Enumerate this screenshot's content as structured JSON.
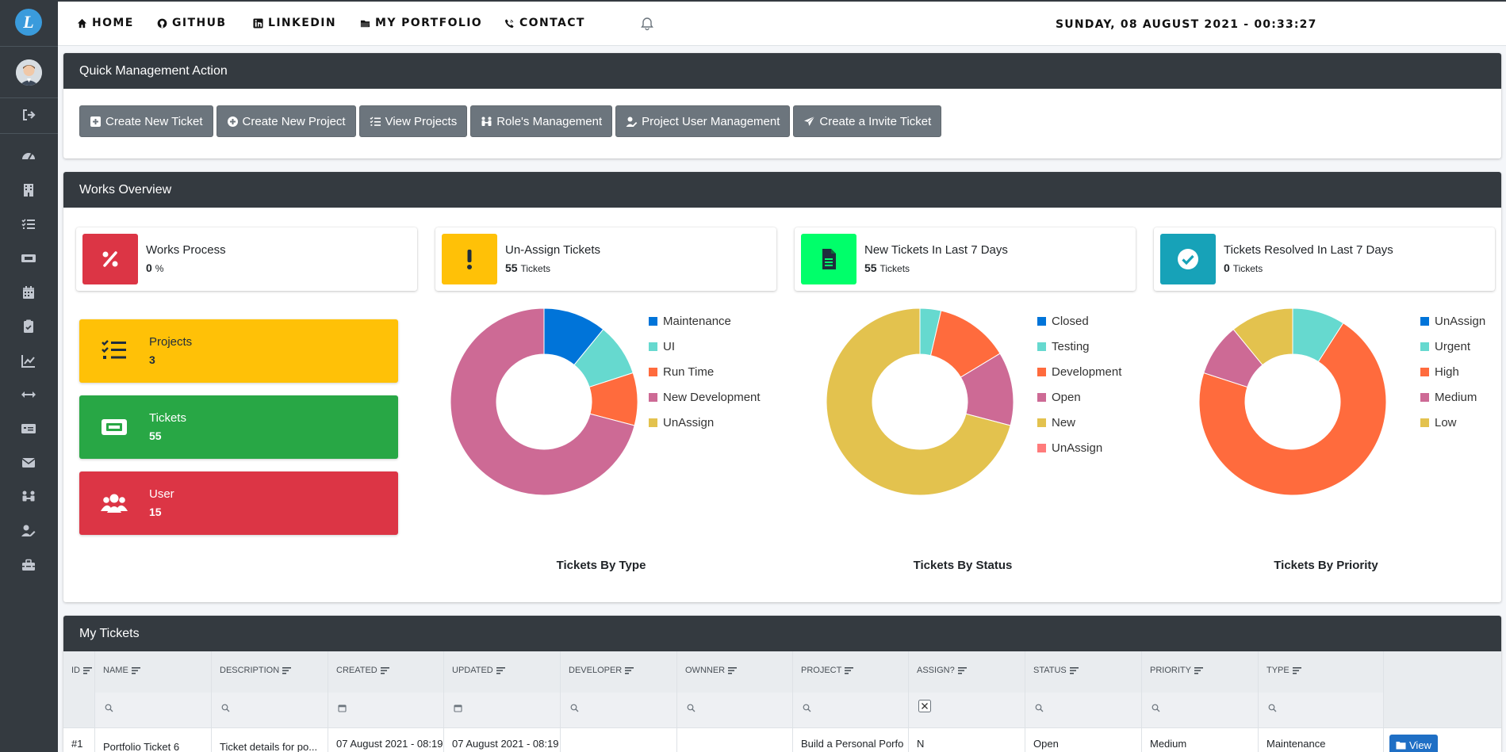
{
  "nav": {
    "home": "HOME",
    "github": "GITHUB",
    "linkedin": "LINKEDIN",
    "portfolio": "MY PORTFOLIO",
    "contact": "CONTACT",
    "datetime": "SUNDAY, 08 AUGUST 2021 - 00:33:27"
  },
  "sidebar": {
    "logo": "L",
    "icons": [
      "logout-icon",
      "dashboard-icon",
      "building-icon",
      "tasks-icon",
      "ticket-icon",
      "calendar-icon",
      "clipboard-icon",
      "chart-icon",
      "arrows-icon",
      "money-icon",
      "mail-icon",
      "users-icon",
      "user-edit-icon",
      "toolbox-icon"
    ]
  },
  "quick": {
    "title": "Quick Management Action",
    "buttons": [
      "Create New Ticket",
      "Create New Project",
      "View Projects",
      "Role's Management",
      "Project User Management",
      "Create a Invite Ticket"
    ]
  },
  "overview": {
    "title": "Works Overview",
    "info": [
      {
        "title": "Works Process",
        "value": "0",
        "unit": "%",
        "color": "#dc3545"
      },
      {
        "title": "Un-Assign Tickets",
        "value": "55",
        "unit": "Tickets",
        "color": "#ffc107"
      },
      {
        "title": "New Tickets In Last 7 Days",
        "value": "55",
        "unit": "Tickets",
        "color": "#00ff6a"
      },
      {
        "title": "Tickets Resolved In Last 7 Days",
        "value": "0",
        "unit": "Tickets",
        "color": "#17a2b8"
      }
    ],
    "boxes": [
      {
        "title": "Projects",
        "value": "3",
        "color": "#ffc107"
      },
      {
        "title": "Tickets",
        "value": "55",
        "color": "#28a745"
      },
      {
        "title": "User",
        "value": "15",
        "color": "#dc3545"
      }
    ]
  },
  "chart_data": [
    {
      "type": "pie",
      "title": "Tickets By Type",
      "categories": [
        "Maintenance",
        "UI",
        "Run Time",
        "New Development",
        "UnAssign"
      ],
      "values": [
        6,
        5,
        5,
        39,
        0
      ],
      "colors": [
        "#0074d9",
        "#66d9cf",
        "#ff6b3d",
        "#cd6a95",
        "#e3c24e"
      ]
    },
    {
      "type": "pie",
      "title": "Tickets By Status",
      "categories": [
        "Closed",
        "Testing",
        "Development",
        "Open",
        "New",
        "UnAssign"
      ],
      "values": [
        0,
        2,
        7,
        7,
        39,
        0
      ],
      "colors": [
        "#0074d9",
        "#66d9cf",
        "#ff6b3d",
        "#cd6a95",
        "#e3c24e",
        "#ff7b7b"
      ]
    },
    {
      "type": "pie",
      "title": "Tickets By Priority",
      "categories": [
        "UnAssign",
        "Urgent",
        "High",
        "Medium",
        "Low"
      ],
      "values": [
        0,
        5,
        39,
        5,
        6
      ],
      "colors": [
        "#0074d9",
        "#66d9cf",
        "#ff6b3d",
        "#cd6a95",
        "#e3c24e"
      ]
    }
  ],
  "tickets": {
    "title": "My Tickets",
    "columns": [
      "ID",
      "NAME",
      "DESCRIPTION",
      "CREATED",
      "UPDATED",
      "DEVELOPER",
      "OWNNER",
      "PROJECT",
      "ASSIGN?",
      "STATUS",
      "PRIORITY",
      "TYPE"
    ],
    "rows": [
      {
        "id": "#1",
        "name": "Portfolio Ticket 6",
        "description": "Ticket details for po...",
        "created": "07 August 2021 - 08:19",
        "updated": "07 August 2021 - 08:19",
        "developer": "",
        "owner": "",
        "project": "Build a Personal Porfo",
        "assign": "N",
        "status": "Open",
        "priority": "Medium",
        "type": "Maintenance"
      }
    ],
    "view_label": "View"
  }
}
